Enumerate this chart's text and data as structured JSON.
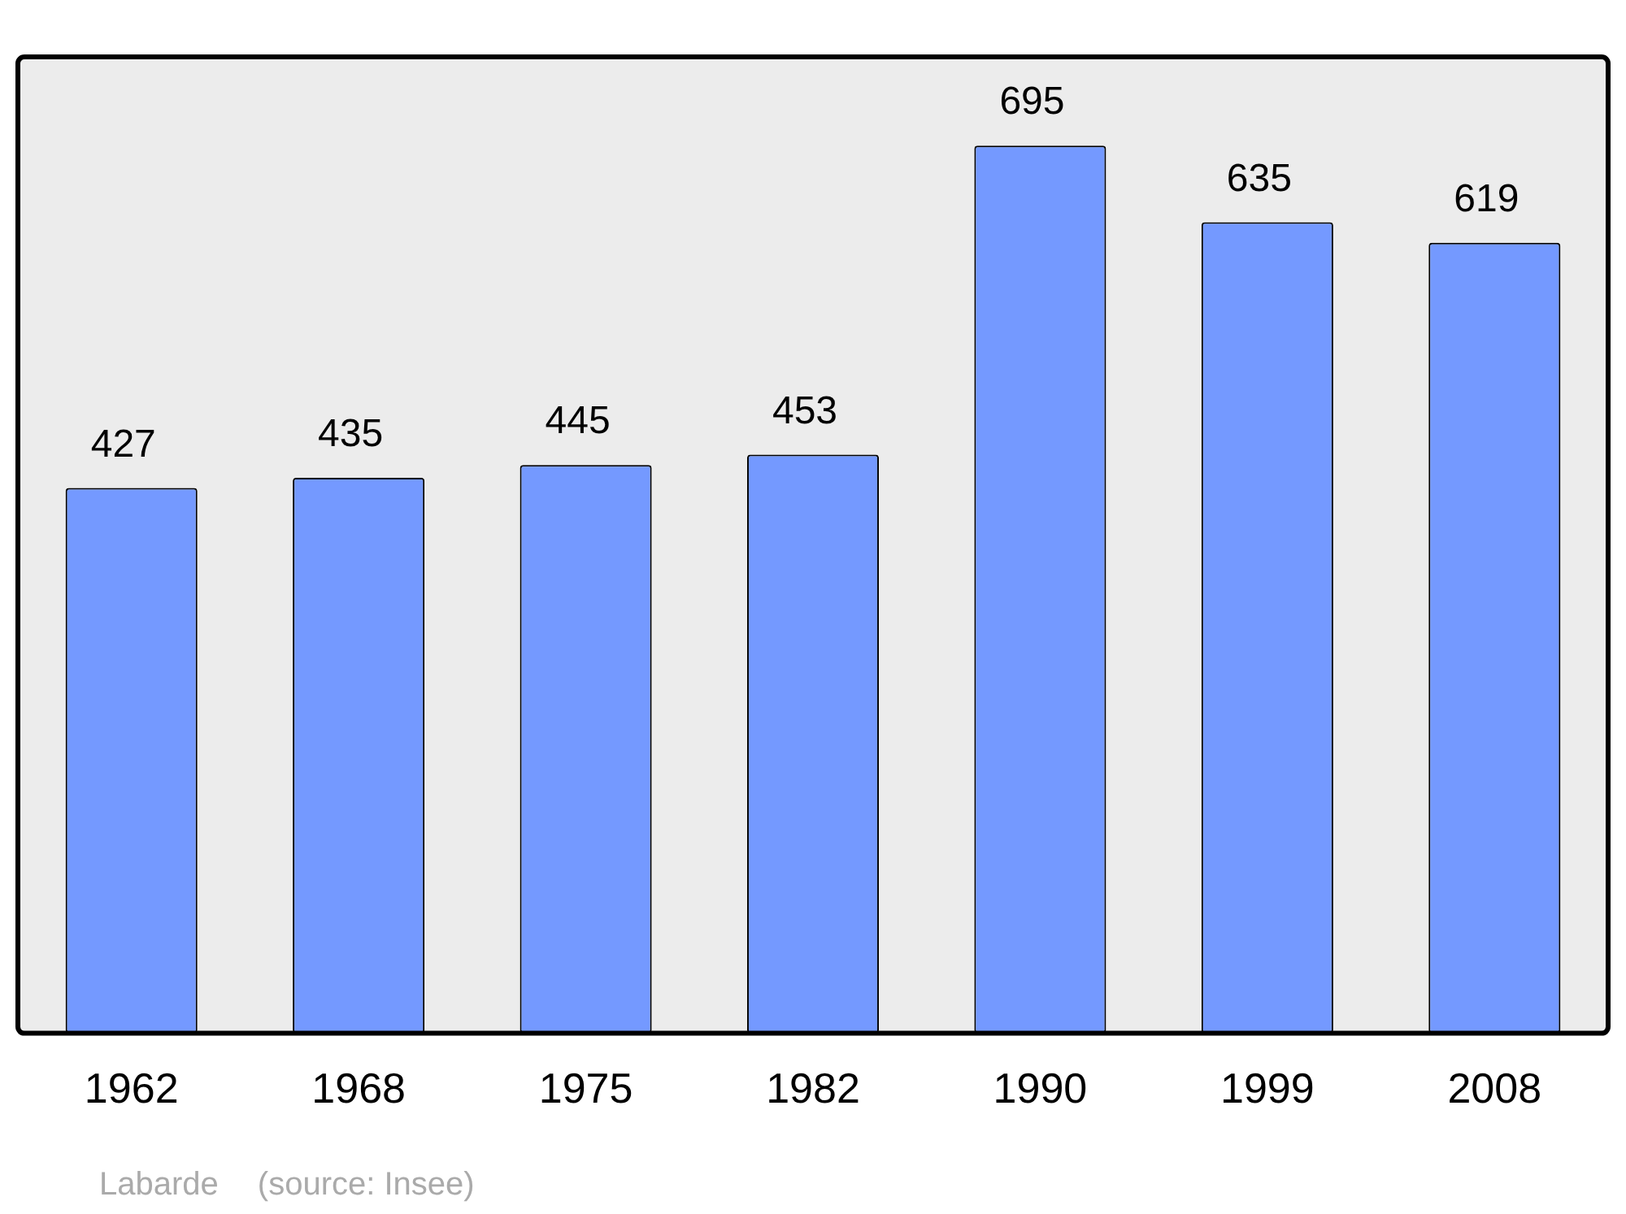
{
  "chart_data": {
    "type": "bar",
    "categories": [
      "1962",
      "1968",
      "1975",
      "1982",
      "1990",
      "1999",
      "2008"
    ],
    "values": [
      427,
      435,
      445,
      453,
      695,
      635,
      619
    ],
    "color": "#7499ff",
    "data_labels": true,
    "grid": false,
    "legend": false,
    "tick_labels": "x",
    "annotations": [
      "Labarde",
      "(source: Insee)"
    ]
  }
}
